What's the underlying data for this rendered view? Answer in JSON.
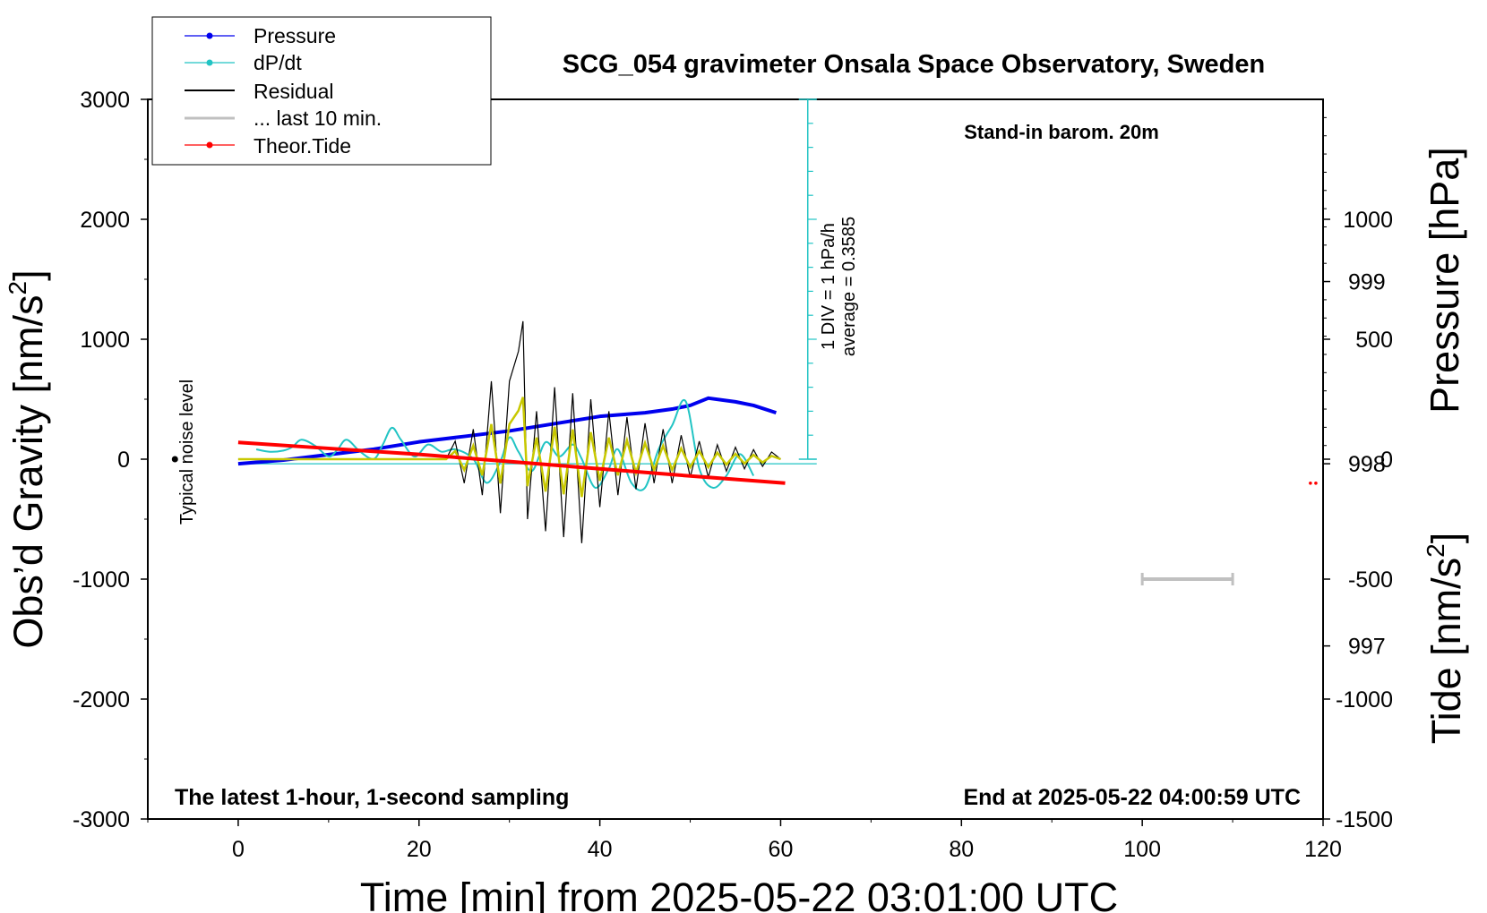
{
  "chart_data": {
    "type": "line",
    "title": "SCG_054 gravimeter Onsala Space Observatory, Sweden",
    "subtitle": "Stand-in barom. 20m",
    "footer_left": "The latest 1-hour, 1-second sampling",
    "footer_right": "End at 2025-05-22 04:00:59 UTC",
    "xlabel": "Time [min] from 2025-05-22 03:01:00 UTC",
    "ylabel_left": "Obs’d Gravity [nm/s",
    "ylabel_left_sup": "2",
    "ylabel_left_close": "]",
    "ylabel_right_pressure": "Pressure [hPa]",
    "ylabel_right_tide": "Tide [nm/s",
    "ylabel_right_tide_sup": "2",
    "ylabel_right_tide_close": "]",
    "xlim": [
      -10,
      120
    ],
    "ylim_left": [
      -3000,
      3000
    ],
    "pressure_ylim": [
      996.05,
      1000
    ],
    "tide_ylim": [
      -1500,
      1500
    ],
    "x_ticks": [
      "0",
      "20",
      "40",
      "60",
      "80",
      "100",
      "120"
    ],
    "y_ticks_left": [
      "3000",
      "2000",
      "1000",
      "0",
      "-1000",
      "-2000",
      "-3000"
    ],
    "y_ticks_pressure": [
      "999",
      "998",
      "997"
    ],
    "y_ticks_tide": [
      "1000",
      "500",
      "0",
      "-500",
      "-1000",
      "-1500"
    ],
    "dpdt_scale_label": "1 DIV = 1 hPa/h",
    "dpdt_average_label": "average = 0.3585",
    "noise_label": "Typical noise level",
    "legend": [
      "Pressure",
      "dP/dt",
      "Residual",
      "... last 10 min.",
      "Theor.Tide"
    ],
    "colors": {
      "pressure": "#0000ee",
      "dpdt": "#22c4c4",
      "residual": "#000000",
      "last10": "#c0c0c0",
      "tide": "#ff0000",
      "filtered": "#c8c800"
    },
    "series": [
      {
        "name": "Pressure",
        "unit": "hPa",
        "x": [
          0,
          5,
          10,
          15,
          20,
          25,
          30,
          35,
          40,
          45,
          48,
          50,
          52,
          55,
          57,
          59.5
        ],
        "values": [
          998.0,
          998.02,
          998.05,
          998.08,
          998.12,
          998.15,
          998.18,
          998.22,
          998.26,
          998.28,
          998.3,
          998.32,
          998.36,
          998.34,
          998.32,
          998.28
        ]
      },
      {
        "name": "dP/dt",
        "unit": "hPa/h (1 DIV = 1 hPa/h, baseline = average 0.3585)",
        "x": [
          2,
          3.5,
          5,
          6,
          7,
          8.5,
          10,
          11,
          12,
          13.5,
          15,
          16,
          17,
          18,
          19.5,
          21,
          22.5,
          24,
          26,
          27.5,
          29,
          30,
          31,
          32.5,
          34,
          35.5,
          37,
          38,
          39.5,
          41,
          42,
          43.5,
          45,
          46.5,
          48,
          49.5,
          51,
          52.5,
          54,
          55.5,
          57
        ],
        "values": [
          0.6,
          0.5,
          0.55,
          0.7,
          1.0,
          0.75,
          0.3,
          0.6,
          1.0,
          0.5,
          0.2,
          0.8,
          1.5,
          1.0,
          0.3,
          0.8,
          0.5,
          0.6,
          0.2,
          -0.8,
          0.1,
          1.1,
          0.5,
          -0.3,
          0.9,
          0.3,
          0.8,
          0.2,
          -1.0,
          -0.2,
          0.6,
          -0.8,
          -1.0,
          0.6,
          1.6,
          2.6,
          -0.2,
          -1.0,
          -0.5,
          0.4,
          -0.5
        ]
      },
      {
        "name": "Residual",
        "unit": "nm/s2",
        "x": [
          0,
          23,
          24,
          25,
          26,
          27,
          28,
          29,
          30,
          31,
          31.5,
          32,
          33,
          34,
          35,
          36,
          37,
          38,
          39,
          40,
          41,
          42,
          43,
          44,
          45,
          46,
          47,
          48,
          49,
          50,
          51,
          52,
          53,
          54,
          55,
          56,
          57,
          58,
          59,
          60
        ],
        "values": [
          0,
          0,
          150,
          -200,
          250,
          -300,
          650,
          -450,
          650,
          900,
          1150,
          -500,
          400,
          -600,
          600,
          -650,
          550,
          -700,
          500,
          -400,
          400,
          -300,
          350,
          -250,
          300,
          -200,
          250,
          -200,
          200,
          -150,
          150,
          -150,
          120,
          -100,
          100,
          -80,
          80,
          -60,
          60,
          0
        ]
      },
      {
        "name": "... last 10 min.",
        "unit": "nm/s2",
        "x": [
          100,
          110
        ],
        "values": [
          -1000,
          -1000
        ]
      },
      {
        "name": "Theor.Tide",
        "unit": "nm/s2",
        "x": [
          0,
          10,
          20,
          30,
          40,
          50,
          60.5
        ],
        "values": [
          70,
          45,
          20,
          -10,
          -40,
          -70,
          -100
        ]
      }
    ]
  }
}
